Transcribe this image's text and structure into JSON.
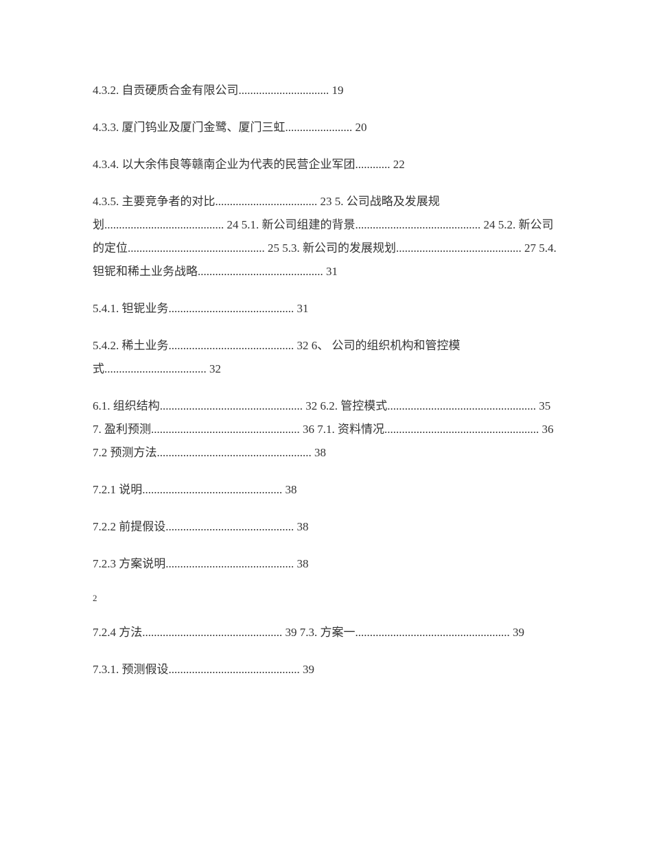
{
  "document": {
    "font_family": "SimSun",
    "font_size": 17,
    "line_height": 2.0,
    "text_color": "#333333",
    "background_color": "#ffffff"
  },
  "toc": {
    "entries": [
      "4.3.2. 自贡硬质合金有限公司............................... 19",
      "4.3.3. 厦门钨业及厦门金鹭、厦门三虹....................... 20",
      "4.3.4. 以大余伟良等赣南企业为代表的民营企业军团............ 22",
      "4.3.5. 主要竞争者的对比................................... 23 5. 公司战略及发展规划......................................... 24 5.1. 新公司组建的背景........................................... 24 5.2. 新公司的定位............................................... 25 5.3. 新公司的发展规划........................................... 27 5.4. 钽铌和稀土业务战略........................................... 31",
      "5.4.1. 钽铌业务........................................... 31",
      "5.4.2. 稀土业务........................................... 32 6、 公司的组织机构和管控模式................................... 32",
      "6.1. 组织结构................................................. 32 6.2. 管控模式................................................... 35 7. 盈利预测................................................... 36 7.1. 资料情况..................................................... 36 7.2 预测方法..................................................... 38",
      "7.2.1 说明................................................ 38",
      "7.2.2 前提假设............................................ 38",
      "7.2.3 方案说明............................................ 38"
    ],
    "page_marker": "2",
    "entries_after": [
      "7.2.4 方法................................................ 39 7.3. 方案一..................................................... 39",
      "7.3.1. 预测假设............................................. 39"
    ]
  }
}
